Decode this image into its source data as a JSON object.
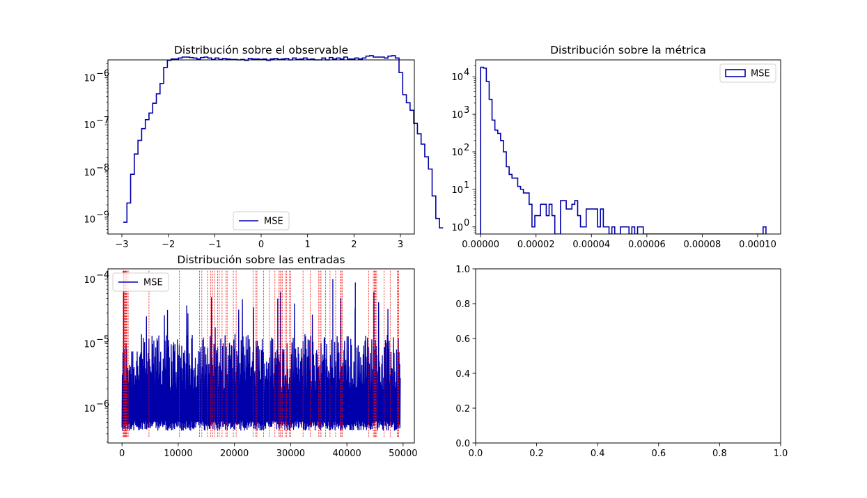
{
  "figure": {
    "panels": [
      {
        "title": "Distribución sobre el observable"
      },
      {
        "title": "Distribución sobre la métrica"
      },
      {
        "title": "Distribución sobre las entradas"
      },
      {
        "title": ""
      }
    ]
  },
  "chart_data": [
    {
      "type": "line",
      "title": "Distribución sobre el observable",
      "xlabel": "",
      "ylabel": "",
      "xlim": [
        -3.3,
        3.3
      ],
      "ylim_log10": [
        -9.32,
        -5.62
      ],
      "yscale": "log",
      "xticks": [
        "−3",
        "−2",
        "−1",
        "0",
        "1",
        "2",
        "3"
      ],
      "yticks": [
        "10",
        "10",
        "10",
        "10"
      ],
      "ytick_exponents": [
        "−9",
        "−8",
        "−7",
        "−6"
      ],
      "legend": {
        "labels": [
          "MSE"
        ],
        "loc": "lower center"
      },
      "series": [
        {
          "name": "MSE",
          "color": "#0000aa",
          "drawstyle": "steps",
          "bin_edges_start": -2.97,
          "bin_width": 0.0792,
          "log10_values": [
            -9.07,
            -8.66,
            -8.05,
            -7.62,
            -7.33,
            -7.08,
            -6.89,
            -6.75,
            -6.54,
            -6.34,
            -6.12,
            -5.78,
            -5.63,
            -5.6,
            -5.6,
            -5.58,
            -5.56,
            -5.56,
            -5.57,
            -5.58,
            -5.6,
            -5.57,
            -5.56,
            -5.58,
            -5.61,
            -5.58,
            -5.61,
            -5.59,
            -5.6,
            -5.61,
            -5.61,
            -5.62,
            -5.61,
            -5.63,
            -5.59,
            -5.6,
            -5.6,
            -5.61,
            -5.6,
            -5.63,
            -5.6,
            -5.59,
            -5.61,
            -5.6,
            -5.59,
            -5.62,
            -5.58,
            -5.61,
            -5.6,
            -5.58,
            -5.61,
            -5.6,
            -5.62,
            -5.62,
            -5.58,
            -5.62,
            -5.57,
            -5.6,
            -5.58,
            -5.6,
            -5.56,
            -5.6,
            -5.6,
            -5.58,
            -5.6,
            -5.58,
            -5.54,
            -5.53,
            -5.56,
            -5.56,
            -5.56,
            -5.58,
            -5.54,
            -5.53,
            -5.58,
            -5.89,
            -6.36,
            -6.53,
            -6.69,
            -6.97,
            -7.19,
            -7.41,
            -7.68,
            -7.94,
            -8.51,
            -8.99,
            -9.19
          ]
        }
      ]
    },
    {
      "type": "bar",
      "title": "Distribución sobre la métrica",
      "xlabel": "",
      "ylabel": "",
      "xlim": [
        -1.8e-06,
        0.0001083
      ],
      "ylim_log10": [
        -0.19,
        4.45
      ],
      "yscale": "log",
      "xticks": [
        "0.00000",
        "0.00002",
        "0.00004",
        "0.00006",
        "0.00008",
        "0.00010"
      ],
      "yticks": [
        "10",
        "10",
        "10",
        "10",
        "10"
      ],
      "ytick_exponents": [
        "0",
        "1",
        "2",
        "3",
        "4"
      ],
      "legend": {
        "labels": [
          "MSE"
        ],
        "loc": "upper right"
      },
      "series": [
        {
          "name": "MSE",
          "color": "#0000aa",
          "histtype": "step",
          "bin_edges_start": 0.0,
          "bin_width": 1.03e-06,
          "counts": [
            18000,
            17000,
            7500,
            2500,
            700,
            380,
            310,
            200,
            100,
            40,
            25,
            20,
            20,
            12,
            10,
            8,
            8,
            4,
            1,
            2,
            2,
            4,
            4,
            2,
            4,
            2,
            0,
            0,
            5,
            5,
            3,
            3,
            4,
            5,
            2,
            1,
            1,
            3,
            3,
            3,
            3,
            1,
            3,
            1,
            1,
            0,
            1,
            0,
            0,
            1,
            1,
            1,
            0,
            1,
            0,
            1,
            1,
            0,
            0,
            0,
            0,
            0,
            0,
            0,
            0,
            0,
            0,
            0,
            0,
            0,
            0,
            0,
            0,
            0,
            0,
            0,
            0,
            0,
            0,
            0,
            0,
            0,
            0,
            0,
            0,
            0,
            0,
            0,
            0,
            0,
            0,
            0,
            0,
            0,
            0,
            0,
            0,
            0,
            0,
            1
          ]
        }
      ]
    },
    {
      "type": "line",
      "title": "Distribución sobre las entradas",
      "xlabel": "",
      "ylabel": "",
      "xlim": [
        -2500,
        52000
      ],
      "ylim_log10": [
        -6.54,
        -3.84
      ],
      "yscale": "log",
      "xticks": [
        "0",
        "10000",
        "20000",
        "30000",
        "40000",
        "50000"
      ],
      "yticks": [
        "10",
        "10",
        "10"
      ],
      "ytick_exponents": [
        "−6",
        "−5",
        "−4"
      ],
      "legend": {
        "labels": [
          "MSE"
        ],
        "loc": "upper left"
      },
      "series": [
        {
          "name": "MSE",
          "color": "#0000aa",
          "n_points": 49500,
          "description_values": {
            "baseline_log10": -6.05,
            "spike_max_log10": -3.85
          }
        }
      ],
      "vlines": {
        "color": "#ff0000",
        "linestyle": "dashed",
        "x": [
          200,
          300,
          400,
          500,
          600,
          700,
          800,
          900,
          1100,
          4800,
          10200,
          13800,
          14200,
          15200,
          15800,
          16100,
          16500,
          17000,
          17300,
          17800,
          18500,
          18700,
          19800,
          20300,
          23300,
          23800,
          24000,
          25200,
          26200,
          27200,
          27900,
          28100,
          28300,
          28500,
          29000,
          29300,
          29800,
          30000,
          32200,
          33500,
          35000,
          35200,
          35400,
          36200,
          37000,
          38000,
          38800,
          39000,
          39200,
          43900,
          44700,
          44900,
          45000,
          45100,
          45300,
          46600,
          47700,
          49000,
          49100,
          49200
        ]
      }
    },
    {
      "type": "line",
      "title": "",
      "xlabel": "",
      "ylabel": "",
      "xlim": [
        0,
        1
      ],
      "ylim": [
        0,
        1
      ],
      "xticks": [
        "0.0",
        "0.2",
        "0.4",
        "0.6",
        "0.8",
        "1.0"
      ],
      "yticks": [
        "0.0",
        "0.2",
        "0.4",
        "0.6",
        "0.8",
        "1.0"
      ],
      "series": []
    }
  ]
}
